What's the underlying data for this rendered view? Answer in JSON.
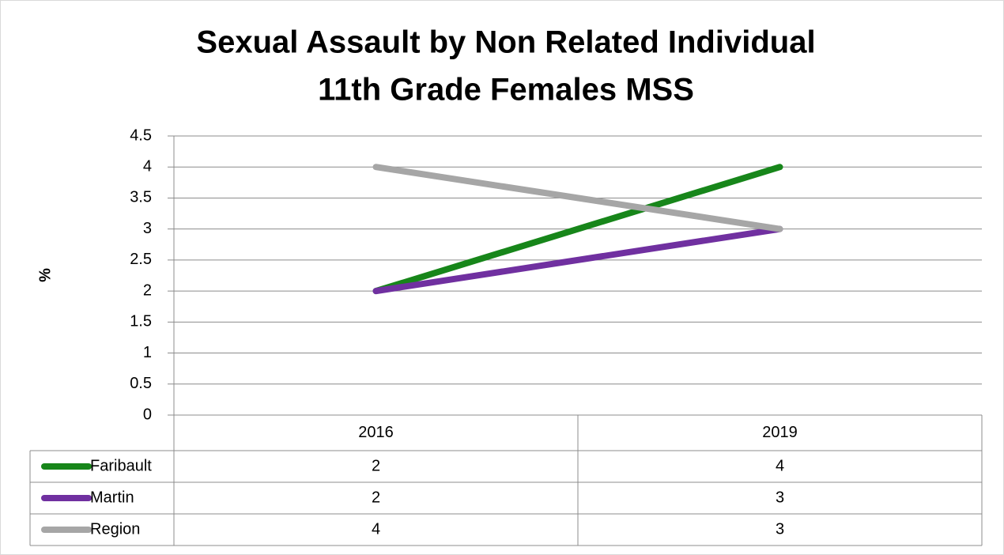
{
  "chart_data": {
    "type": "line",
    "title": [
      "Sexual Assault by Non Related Individual",
      "11th Grade Females MSS"
    ],
    "y_label": "%",
    "categories": [
      "2016",
      "2019"
    ],
    "series": [
      {
        "name": "Faribault",
        "color": "#17861a",
        "values": [
          2,
          4
        ]
      },
      {
        "name": "Martin",
        "color": "#7030a0",
        "values": [
          2,
          3
        ]
      },
      {
        "name": "Region",
        "color": "#a6a6a6",
        "values": [
          4,
          3
        ]
      }
    ],
    "ylim": [
      0,
      4.5
    ],
    "yticks": [
      0,
      0.5,
      1,
      1.5,
      2,
      2.5,
      3,
      3.5,
      4,
      4.5
    ],
    "grid": true
  }
}
